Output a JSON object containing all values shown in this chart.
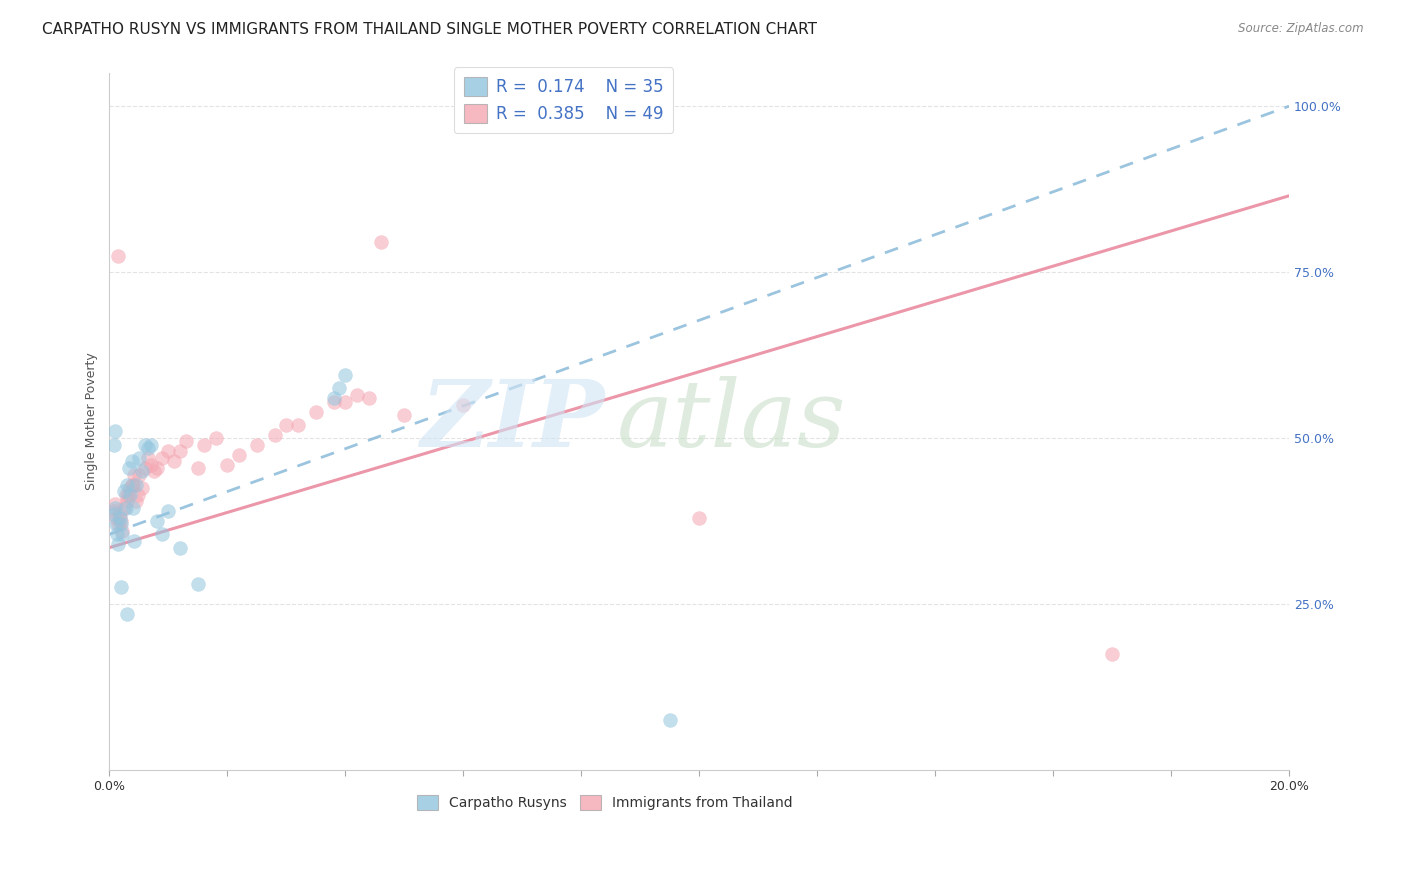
{
  "title": "CARPATHO RUSYN VS IMMIGRANTS FROM THAILAND SINGLE MOTHER POVERTY CORRELATION CHART",
  "source": "Source: ZipAtlas.com",
  "ylabel": "Single Mother Poverty",
  "ytick_labels": [
    "25.0%",
    "50.0%",
    "75.0%",
    "100.0%"
  ],
  "ytick_positions": [
    0.25,
    0.5,
    0.75,
    1.0
  ],
  "legend_label_carpatho": "Carpatho Rusyns",
  "legend_label_thailand": "Immigrants from Thailand",
  "blue_color": "#92C5DE",
  "pink_color": "#F4A6B2",
  "blue_legend_R": "0.174",
  "blue_legend_N": "35",
  "pink_legend_R": "0.385",
  "pink_legend_N": "49",
  "xmin": 0.0,
  "xmax": 0.2,
  "ymin": 0.0,
  "ymax": 1.05,
  "blue_trend_x0": 0.0,
  "blue_trend_y0": 0.355,
  "blue_trend_x1": 0.2,
  "blue_trend_y1": 1.0,
  "pink_trend_x0": 0.0,
  "pink_trend_y0": 0.335,
  "pink_trend_x1": 0.2,
  "pink_trend_y1": 0.865,
  "blue_points_x": [
    0.0008,
    0.001,
    0.0012,
    0.0013,
    0.0015,
    0.0018,
    0.002,
    0.0022,
    0.0025,
    0.0028,
    0.003,
    0.0033,
    0.0035,
    0.0038,
    0.004,
    0.0042,
    0.0045,
    0.005,
    0.0055,
    0.006,
    0.0065,
    0.007,
    0.008,
    0.009,
    0.01,
    0.012,
    0.015,
    0.038,
    0.039,
    0.04,
    0.095,
    0.0008,
    0.001,
    0.002,
    0.003
  ],
  "blue_points_y": [
    0.385,
    0.395,
    0.37,
    0.355,
    0.34,
    0.38,
    0.37,
    0.355,
    0.42,
    0.395,
    0.43,
    0.455,
    0.415,
    0.465,
    0.395,
    0.345,
    0.43,
    0.47,
    0.45,
    0.49,
    0.485,
    0.49,
    0.375,
    0.355,
    0.39,
    0.335,
    0.28,
    0.56,
    0.575,
    0.595,
    0.075,
    0.49,
    0.51,
    0.275,
    0.235
  ],
  "pink_points_x": [
    0.0008,
    0.001,
    0.0012,
    0.0015,
    0.0018,
    0.002,
    0.0022,
    0.0025,
    0.0028,
    0.003,
    0.0032,
    0.0035,
    0.0038,
    0.004,
    0.0042,
    0.0045,
    0.0048,
    0.005,
    0.0055,
    0.006,
    0.0065,
    0.007,
    0.0075,
    0.008,
    0.009,
    0.01,
    0.011,
    0.012,
    0.013,
    0.015,
    0.016,
    0.018,
    0.02,
    0.022,
    0.025,
    0.028,
    0.03,
    0.032,
    0.035,
    0.038,
    0.04,
    0.042,
    0.044,
    0.046,
    0.05,
    0.06,
    0.1,
    0.17,
    0.0015
  ],
  "pink_points_y": [
    0.39,
    0.4,
    0.38,
    0.37,
    0.385,
    0.375,
    0.36,
    0.395,
    0.415,
    0.405,
    0.415,
    0.425,
    0.43,
    0.43,
    0.445,
    0.405,
    0.415,
    0.445,
    0.425,
    0.455,
    0.47,
    0.46,
    0.45,
    0.455,
    0.47,
    0.48,
    0.465,
    0.48,
    0.495,
    0.455,
    0.49,
    0.5,
    0.46,
    0.475,
    0.49,
    0.505,
    0.52,
    0.52,
    0.54,
    0.555,
    0.555,
    0.565,
    0.56,
    0.795,
    0.535,
    0.55,
    0.38,
    0.175,
    0.775
  ],
  "grid_color": "#e0e0e0",
  "background_color": "#ffffff",
  "title_fontsize": 11,
  "axis_label_fontsize": 9,
  "tick_fontsize": 9,
  "legend_fontsize": 12
}
